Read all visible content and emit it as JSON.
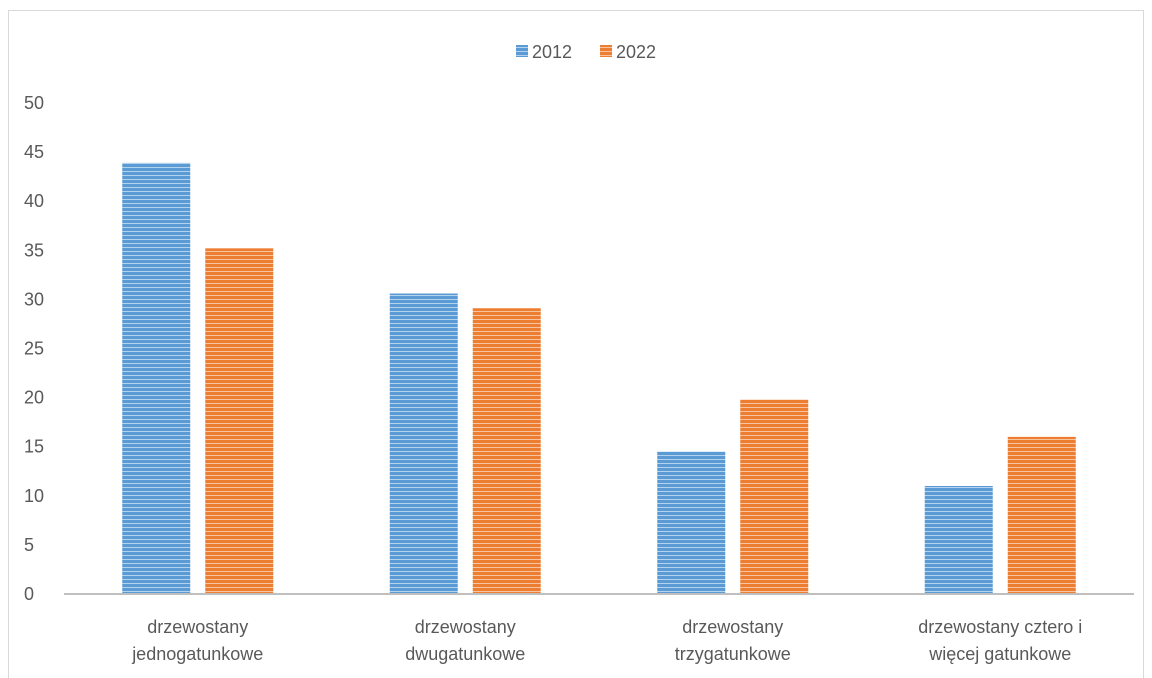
{
  "chart_data": {
    "type": "bar",
    "title": "",
    "xlabel": "",
    "ylabel": "",
    "categories": [
      [
        "drzewostany",
        "jednogatunkowe"
      ],
      [
        "drzewostany",
        "dwugatunkowe"
      ],
      [
        "drzewostany",
        "trzygatunkowe"
      ],
      [
        "drzewostany cztero i",
        "więcej gatunkowe"
      ]
    ],
    "series": [
      {
        "name": "2012",
        "color": "#5b9bd5",
        "values": [
          43.9,
          30.6,
          14.5,
          11.0
        ]
      },
      {
        "name": "2022",
        "color": "#ed7d31",
        "values": [
          35.2,
          29.1,
          19.8,
          16.0
        ]
      }
    ],
    "ylim": [
      0,
      50
    ],
    "yticks": [
      0,
      5,
      10,
      15,
      20,
      25,
      30,
      35,
      40,
      45,
      50
    ],
    "grid": false,
    "legend_position": "top-center",
    "bar_fill": "horizontal-stripes",
    "axis_color": "#bfbfbf",
    "text_color": "#595959"
  }
}
